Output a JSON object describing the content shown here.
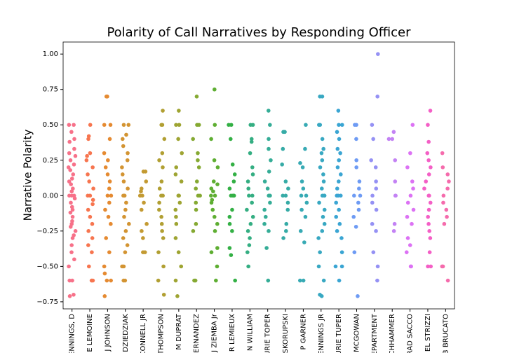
{
  "chart_data": {
    "type": "strip",
    "title": "Polarity of Call Narratives by Responding Officer",
    "ylabel": "Narrative Polarity",
    "categories": [
      "ENNINGS, D",
      "E LEMOINE",
      "J JOHNSON",
      "DZIEDZIAK",
      "CONNELL JR",
      "THOMPSON",
      "M DUPRAT",
      "HERNANDEZ",
      "J ZIEMBA Jr",
      "R LEMIEUX",
      "N WILLIAM",
      "URIE TOPER",
      "SKORUPSKI",
      "P GARNER",
      "ENNINGS JR",
      "URIE TUPER",
      "MCGOWAN",
      "EPARTMENT",
      "CHHAMMER",
      "RAD SACCO",
      "EL STRIZZI",
      "B BRUCATO"
    ],
    "colors": [
      "#f77189",
      "#f7754f",
      "#e58a31",
      "#d39432",
      "#c39a32",
      "#b19f32",
      "#9ea432",
      "#85a932",
      "#5eae32",
      "#33b045",
      "#34ae82",
      "#35ad97",
      "#36aba6",
      "#37aab4",
      "#38a8c2",
      "#3aa5d3",
      "#6e9bf4",
      "#9591f4",
      "#c382f4",
      "#dc72f4",
      "#f45fc6",
      "#f56bac"
    ],
    "values": [
      [
        0.5,
        0.5,
        0.45,
        0.4,
        0.38,
        0.33,
        0.3,
        0.28,
        0.25,
        0.22,
        0.2,
        0.18,
        0.15,
        0.12,
        0.1,
        0.08,
        0.05,
        0.03,
        0,
        0,
        0,
        -0.02,
        -0.05,
        -0.08,
        -0.1,
        -0.12,
        -0.15,
        -0.18,
        -0.2,
        -0.22,
        -0.25,
        -0.28,
        -0.3,
        -0.35,
        -0.4,
        -0.45,
        -0.5,
        -0.6,
        -0.6,
        -0.7,
        -0.71
      ],
      [
        0.5,
        0.42,
        0.4,
        0.3,
        0.28,
        0.25,
        0.2,
        0.15,
        0.1,
        0.05,
        0,
        0,
        -0.03,
        -0.06,
        -0.1,
        -0.15,
        -0.2,
        -0.25,
        -0.3,
        -0.35,
        -0.4,
        -0.5,
        -0.6,
        -0.6
      ],
      [
        0.7,
        0.7,
        0.5,
        0.5,
        0.4,
        0.3,
        0.25,
        0.2,
        0.15,
        0.1,
        0.05,
        0,
        0,
        -0.05,
        -0.1,
        -0.15,
        -0.2,
        -0.3,
        -0.4,
        -0.5,
        -0.55,
        -0.6,
        -0.6,
        -0.71
      ],
      [
        0.5,
        0.5,
        0.43,
        0.4,
        0.35,
        0.3,
        0.25,
        0.2,
        0.15,
        0.1,
        0.05,
        0,
        0,
        -0.05,
        -0.1,
        -0.15,
        -0.2,
        -0.25,
        -0.3,
        -0.35,
        -0.4,
        -0.5,
        -0.5,
        -0.6,
        -0.6
      ],
      [
        0.17,
        0.17,
        0.1,
        0.05,
        0.03,
        0,
        0,
        0,
        -0.05,
        -0.1,
        -0.2,
        -0.25,
        -0.3,
        -0.4,
        -0.4
      ],
      [
        0.6,
        0.5,
        0.5,
        0.4,
        0.3,
        0.25,
        0.2,
        0.1,
        0.05,
        0,
        0,
        -0.05,
        -0.1,
        -0.15,
        -0.2,
        -0.25,
        -0.3,
        -0.4,
        -0.5,
        -0.6,
        -0.7
      ],
      [
        0.6,
        0.5,
        0.5,
        0.4,
        0.3,
        0.2,
        0.15,
        0.1,
        0,
        0,
        -0.05,
        -0.1,
        -0.15,
        -0.2,
        -0.3,
        -0.4,
        -0.5,
        -0.6,
        -0.71
      ],
      [
        0.7,
        0.5,
        0.5,
        0.4,
        0.3,
        0.25,
        0.2,
        0.1,
        0.05,
        0,
        0,
        -0.05,
        -0.1,
        -0.2,
        -0.25,
        -0.6,
        -0.6
      ],
      [
        0.75,
        0.5,
        0.4,
        0.25,
        0.2,
        0.1,
        0.08,
        0.05,
        0.03,
        0,
        0,
        -0.03,
        -0.05,
        -0.1,
        -0.15,
        -0.2,
        -0.25,
        -0.37,
        -0.4,
        -0.5,
        -0.6
      ],
      [
        0.5,
        0.5,
        0.4,
        0.22,
        0.15,
        0.1,
        0.05,
        0,
        0,
        0,
        -0.1,
        -0.15,
        -0.2,
        -0.25,
        -0.37,
        -0.42,
        -0.6
      ],
      [
        0.5,
        0.5,
        0.4,
        0.38,
        0.3,
        0.2,
        0.15,
        0.1,
        0.05,
        0,
        0,
        -0.05,
        -0.1,
        -0.15,
        -0.2,
        -0.25,
        -0.3,
        -0.35,
        -0.4,
        -0.5
      ],
      [
        0.6,
        0.5,
        0.4,
        0.33,
        0.25,
        0.17,
        0.1,
        0.05,
        0,
        0,
        -0.05,
        -0.1,
        -0.15,
        -0.2,
        -0.25,
        -0.37,
        -0.6
      ],
      [
        0.45,
        0.45,
        0.33,
        0.22,
        0.1,
        0.05,
        0,
        0,
        -0.05,
        -0.1,
        -0.2,
        -0.25,
        -0.3
      ],
      [
        0.5,
        0.33,
        0.23,
        0.2,
        0.1,
        0.05,
        0,
        0,
        -0.05,
        -0.1,
        -0.15,
        -0.25,
        -0.33,
        -0.6,
        -0.6
      ],
      [
        0.7,
        0.7,
        0.5,
        0.5,
        0.4,
        0.33,
        0.3,
        0.25,
        0.2,
        0.15,
        0.1,
        0.05,
        0,
        0,
        0,
        -0.05,
        -0.1,
        -0.15,
        -0.2,
        -0.25,
        -0.3,
        -0.4,
        -0.5,
        -0.6,
        -0.7,
        -0.71
      ],
      [
        0.6,
        0.5,
        0.5,
        0.45,
        0.4,
        0.33,
        0.3,
        0.25,
        0.2,
        0.15,
        0.1,
        0.05,
        0,
        0,
        0,
        -0.05,
        -0.1,
        -0.15,
        -0.2,
        -0.25,
        -0.3,
        -0.4,
        -0.5,
        -0.5,
        -0.6
      ],
      [
        0.5,
        0.5,
        0.4,
        0.25,
        0.2,
        0.1,
        0.05,
        0,
        0,
        -0.05,
        -0.1,
        -0.15,
        -0.22,
        -0.4,
        -0.71
      ],
      [
        1.0,
        0.7,
        0.5,
        0.4,
        0.25,
        0.2,
        0.1,
        0.05,
        0,
        -0.05,
        -0.1,
        -0.2,
        -0.25,
        -0.4,
        -0.5,
        -0.6
      ],
      [
        0.45,
        0.4,
        0.4,
        0.25,
        0.1,
        0,
        0,
        -0.2,
        -0.25
      ],
      [
        0.5,
        0.3,
        0.2,
        0.1,
        0.05,
        0,
        -0.05,
        -0.1,
        -0.15,
        -0.2,
        -0.3,
        -0.35,
        -0.4,
        -0.5,
        -0.5
      ],
      [
        0.6,
        0.5,
        0.38,
        0.3,
        0.25,
        0.2,
        0.15,
        0.1,
        0.05,
        0,
        0,
        -0.05,
        -0.1,
        -0.15,
        -0.2,
        -0.25,
        -0.3,
        -0.4,
        -0.5,
        -0.5
      ],
      [
        0.3,
        0.2,
        0.15,
        0.1,
        0.05,
        0,
        -0.05,
        -0.1,
        -0.15,
        -0.2,
        -0.5,
        -0.5,
        -0.6
      ]
    ],
    "ylim": [
      -0.8,
      1.085
    ],
    "yticks": [
      {
        "value": -0.75,
        "label": "−0.75"
      },
      {
        "value": -0.5,
        "label": "−0.50"
      },
      {
        "value": -0.25,
        "label": "−0.25"
      },
      {
        "value": 0,
        "label": "0.00"
      },
      {
        "value": 0.25,
        "label": "0.25"
      },
      {
        "value": 0.5,
        "label": "0.50"
      },
      {
        "value": 0.75,
        "label": "0.75"
      },
      {
        "value": 1,
        "label": "1.00"
      }
    ],
    "grid": false
  }
}
